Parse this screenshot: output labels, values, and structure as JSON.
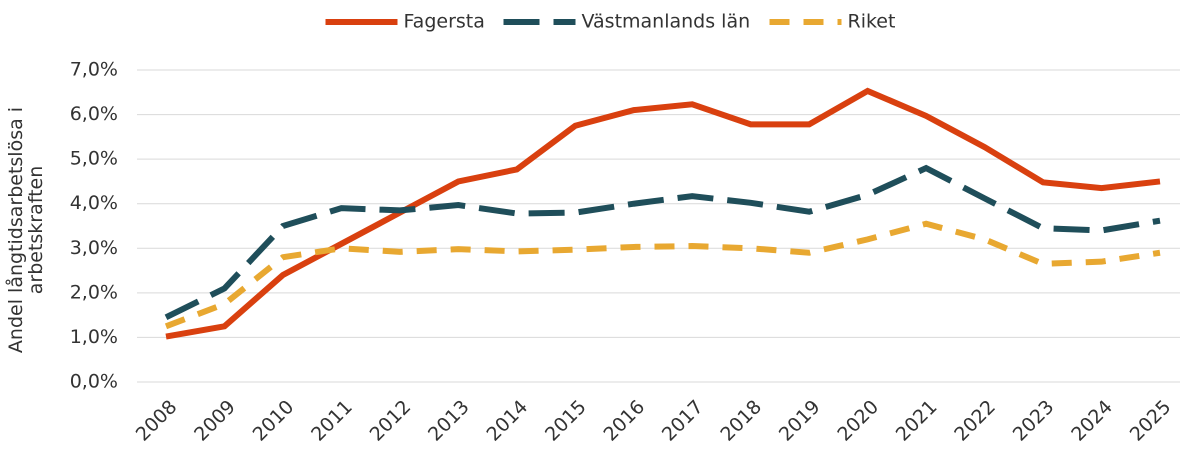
{
  "chart_data": {
    "type": "line",
    "ylabel": [
      "Andel långtidsarbetslösa i",
      "arbetskraften"
    ],
    "categories": [
      "2008",
      "2009",
      "2010",
      "2011",
      "2012",
      "2013",
      "2014",
      "2015",
      "2016",
      "2017",
      "2018",
      "2019",
      "2020",
      "2021",
      "2022",
      "2023",
      "2024",
      "2025"
    ],
    "series": [
      {
        "name": "Fagersta",
        "color": "#d9400f",
        "style": "solid",
        "values": [
          1.02,
          1.25,
          2.4,
          3.1,
          3.8,
          4.5,
          4.77,
          5.75,
          6.1,
          6.23,
          5.78,
          5.78,
          6.53,
          5.97,
          5.27,
          4.48,
          4.35,
          4.5
        ]
      },
      {
        "name": "Västmanlands län",
        "color": "#1f4e5a",
        "style": "longdash",
        "values": [
          1.45,
          2.1,
          3.5,
          3.9,
          3.85,
          3.97,
          3.78,
          3.8,
          4.0,
          4.17,
          4.02,
          3.82,
          4.2,
          4.8,
          4.12,
          3.45,
          3.4,
          3.62
        ]
      },
      {
        "name": "Riket",
        "color": "#e8a831",
        "style": "dash",
        "values": [
          1.25,
          1.75,
          2.8,
          3.0,
          2.92,
          2.98,
          2.93,
          2.97,
          3.03,
          3.05,
          3.0,
          2.9,
          3.2,
          3.55,
          3.2,
          2.65,
          2.7,
          2.9
        ]
      }
    ],
    "ylim": [
      0,
      7
    ],
    "yticks": [
      {
        "value": 0,
        "label": "0,0%"
      },
      {
        "value": 1,
        "label": "1,0%"
      },
      {
        "value": 2,
        "label": "2,0%"
      },
      {
        "value": 3,
        "label": "3,0%"
      },
      {
        "value": 4,
        "label": "4,0%"
      },
      {
        "value": 5,
        "label": "5,0%"
      },
      {
        "value": 6,
        "label": "6,0%"
      },
      {
        "value": 7,
        "label": "7,0%"
      }
    ],
    "grid": true,
    "legend": "top"
  }
}
